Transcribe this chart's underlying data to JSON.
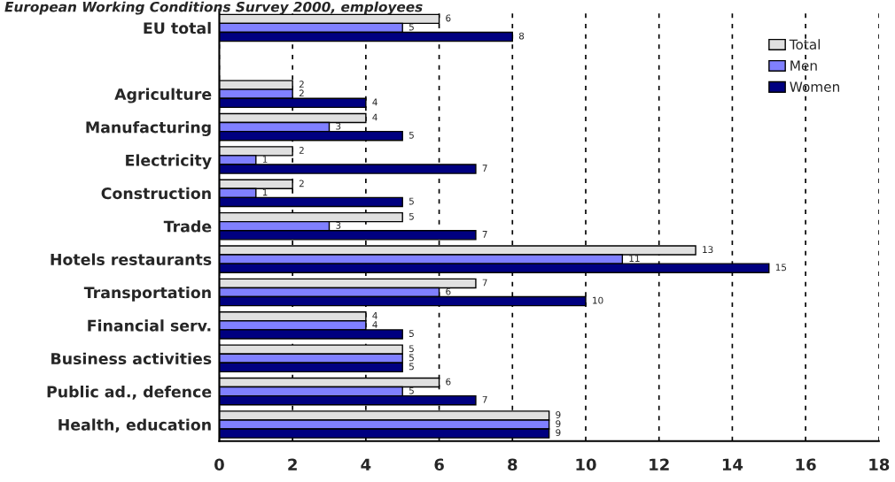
{
  "chart_data": {
    "type": "bar",
    "orientation": "horizontal",
    "title": "European Working Conditions Survey 2000, employees",
    "categories": [
      "EU total",
      null,
      "Agriculture",
      "Manufacturing",
      "Electricity",
      "Construction",
      "Trade",
      "Hotels restaurants",
      "Transportation",
      "Financial serv.",
      "Business activities",
      "Public ad., defence",
      "Health, education"
    ],
    "series": [
      {
        "name": "Total",
        "color": "#e0e0e0",
        "values": [
          6,
          null,
          2,
          4,
          2,
          2,
          5,
          13,
          7,
          4,
          5,
          6,
          9
        ]
      },
      {
        "name": "Men",
        "color": "#8080ff",
        "values": [
          5,
          null,
          2,
          3,
          1,
          1,
          3,
          11,
          6,
          4,
          5,
          5,
          9
        ]
      },
      {
        "name": "Women",
        "color": "#000080",
        "values": [
          8,
          null,
          4,
          5,
          7,
          5,
          7,
          15,
          10,
          5,
          5,
          7,
          9
        ]
      }
    ],
    "xlim": [
      0,
      18
    ],
    "xticks": [
      0,
      2,
      4,
      6,
      8,
      10,
      12,
      14,
      16,
      18
    ],
    "grid": "x",
    "legend": "top right",
    "data_labels": true
  }
}
